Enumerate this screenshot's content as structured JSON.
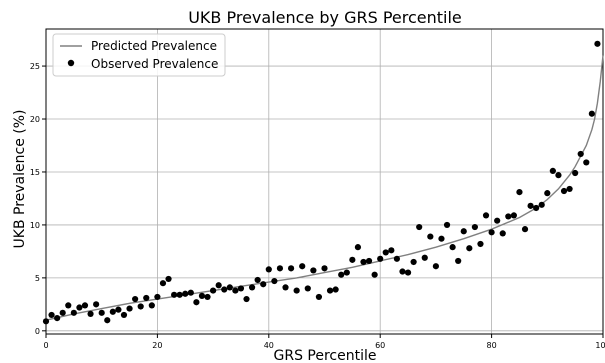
{
  "chart_data": {
    "type": "scatter",
    "title": "UKB Prevalence by GRS Percentile",
    "xlabel": "GRS Percentile",
    "ylabel": "UKB Prevalence (%)",
    "xlim": [
      0,
      100
    ],
    "ylim": [
      -0.3,
      28.5
    ],
    "xticks": [
      0,
      20,
      40,
      60,
      80,
      100
    ],
    "yticks": [
      0,
      5,
      10,
      15,
      20,
      25
    ],
    "grid": true,
    "legend_position": "top-left",
    "line_color": "#808080",
    "point_color": "#000000",
    "series": [
      {
        "name": "Predicted Prevalence",
        "kind": "line",
        "x": [
          0,
          5,
          10,
          15,
          20,
          25,
          30,
          35,
          40,
          45,
          50,
          55,
          60,
          65,
          70,
          75,
          80,
          85,
          88,
          90,
          92,
          94,
          95,
          96,
          97,
          98,
          98.5,
          99,
          99.5,
          100
        ],
        "y": [
          1.0,
          1.6,
          2.1,
          2.6,
          3.0,
          3.4,
          3.8,
          4.2,
          4.6,
          5.0,
          5.5,
          6.0,
          6.6,
          7.2,
          7.9,
          8.7,
          9.6,
          10.7,
          11.6,
          12.4,
          13.4,
          14.7,
          15.5,
          16.5,
          17.5,
          19.0,
          20.0,
          21.5,
          23.5,
          26.0
        ]
      },
      {
        "name": "Observed Prevalence",
        "kind": "scatter",
        "x": [
          0,
          1,
          2,
          3,
          4,
          5,
          6,
          7,
          8,
          9,
          10,
          11,
          12,
          13,
          14,
          15,
          16,
          17,
          18,
          19,
          20,
          21,
          22,
          23,
          24,
          25,
          26,
          27,
          28,
          29,
          30,
          31,
          32,
          33,
          34,
          35,
          36,
          37,
          38,
          39,
          40,
          41,
          42,
          43,
          44,
          45,
          46,
          47,
          48,
          49,
          50,
          51,
          52,
          53,
          54,
          55,
          56,
          57,
          58,
          59,
          60,
          61,
          62,
          63,
          64,
          65,
          66,
          67,
          68,
          69,
          70,
          71,
          72,
          73,
          74,
          75,
          76,
          77,
          78,
          79,
          80,
          81,
          82,
          83,
          84,
          85,
          86,
          87,
          88,
          89,
          90,
          91,
          92,
          93,
          94,
          95,
          96,
          97,
          98,
          99
        ],
        "y": [
          0.9,
          1.5,
          1.2,
          1.7,
          2.4,
          1.7,
          2.2,
          2.4,
          1.6,
          2.5,
          1.7,
          1.0,
          1.8,
          2.0,
          1.5,
          2.1,
          3.0,
          2.3,
          3.1,
          2.4,
          3.2,
          4.5,
          4.9,
          3.4,
          3.4,
          3.5,
          3.6,
          2.7,
          3.3,
          3.2,
          3.8,
          4.3,
          3.9,
          4.1,
          3.8,
          4.0,
          3.0,
          4.1,
          4.8,
          4.4,
          5.8,
          4.7,
          5.9,
          4.1,
          5.9,
          3.8,
          6.1,
          4.0,
          5.7,
          3.2,
          5.9,
          3.8,
          3.9,
          5.3,
          5.5,
          6.7,
          7.9,
          6.5,
          6.6,
          5.3,
          6.8,
          7.4,
          7.6,
          6.8,
          5.6,
          5.5,
          6.5,
          9.8,
          6.9,
          8.9,
          6.1,
          8.7,
          10.0,
          7.9,
          6.6,
          9.4,
          7.8,
          9.8,
          8.2,
          10.9,
          9.3,
          10.4,
          9.2,
          10.8,
          10.9,
          13.1,
          9.6,
          11.8,
          11.6,
          11.9,
          13.0,
          15.1,
          14.7,
          13.2,
          13.4,
          14.9,
          16.7,
          15.9,
          20.5,
          27.1
        ]
      }
    ]
  }
}
